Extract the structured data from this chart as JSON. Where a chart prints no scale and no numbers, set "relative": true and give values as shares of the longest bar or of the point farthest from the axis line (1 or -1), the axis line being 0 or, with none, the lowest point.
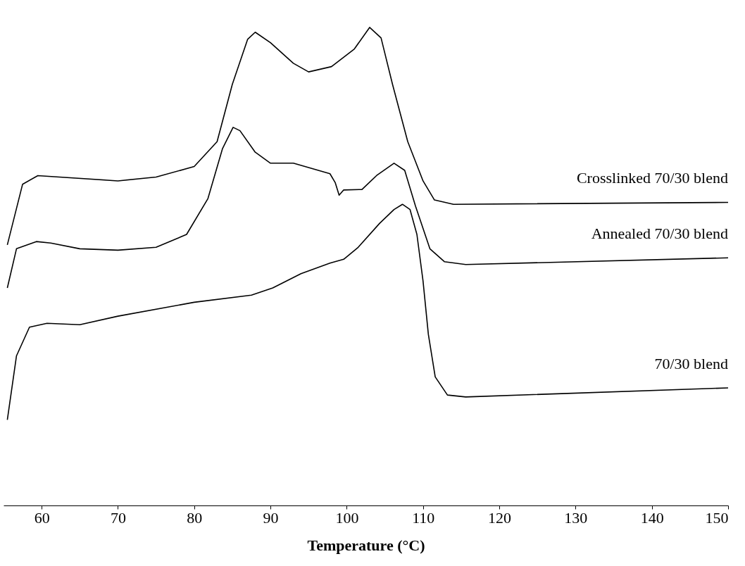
{
  "chart_data": {
    "type": "line",
    "relative": true,
    "xlabel": "Temperature (°C)",
    "xlim": [
      55,
      150
    ],
    "xticks": [
      60,
      70,
      80,
      90,
      100,
      110,
      120,
      130,
      140,
      150
    ],
    "grid": false,
    "legend": false,
    "marker": "none",
    "line_style": "solid",
    "series": [
      {
        "name": "Crosslinked 70/30 blend",
        "color": "#000000",
        "x": [
          55.5,
          57.5,
          59.5,
          70,
          75,
          80,
          83,
          85,
          87,
          88,
          90,
          93,
          95,
          98,
          101,
          103,
          104.5,
          106,
          108,
          110,
          111.5,
          114,
          150
        ],
        "values": [
          0.545,
          0.672,
          0.69,
          0.679,
          0.687,
          0.709,
          0.761,
          0.881,
          0.975,
          0.99,
          0.968,
          0.925,
          0.907,
          0.918,
          0.955,
          1.0,
          0.978,
          0.881,
          0.761,
          0.679,
          0.639,
          0.63,
          0.634
        ]
      },
      {
        "name": "Annealed 70/30 blend",
        "color": "#000000",
        "x": [
          55.5,
          56.7,
          59.3,
          61.2,
          65,
          70,
          75,
          79,
          81.8,
          83.7,
          85.1,
          86,
          88,
          90,
          93,
          97.8,
          98.5,
          99,
          99.6,
          102,
          103.9,
          106.2,
          107.6,
          109,
          110.9,
          112.8,
          115.6,
          150
        ],
        "values": [
          0.455,
          0.537,
          0.552,
          0.549,
          0.537,
          0.534,
          0.54,
          0.567,
          0.642,
          0.746,
          0.791,
          0.784,
          0.739,
          0.716,
          0.716,
          0.694,
          0.675,
          0.649,
          0.66,
          0.661,
          0.69,
          0.716,
          0.701,
          0.627,
          0.537,
          0.51,
          0.504,
          0.518
        ]
      },
      {
        "name": "70/30 blend",
        "color": "#000000",
        "x": [
          55.5,
          56.7,
          58.4,
          60.7,
          65,
          70,
          80,
          87.5,
          90.3,
          94,
          97.8,
          99.6,
          101.5,
          104.3,
          106.2,
          107.3,
          108.3,
          109.2,
          110,
          110.7,
          111.6,
          113.2,
          115.6,
          150
        ],
        "values": [
          0.179,
          0.313,
          0.373,
          0.381,
          0.378,
          0.396,
          0.425,
          0.44,
          0.455,
          0.485,
          0.507,
          0.515,
          0.54,
          0.59,
          0.619,
          0.63,
          0.619,
          0.567,
          0.47,
          0.358,
          0.269,
          0.231,
          0.227,
          0.246
        ]
      }
    ]
  }
}
